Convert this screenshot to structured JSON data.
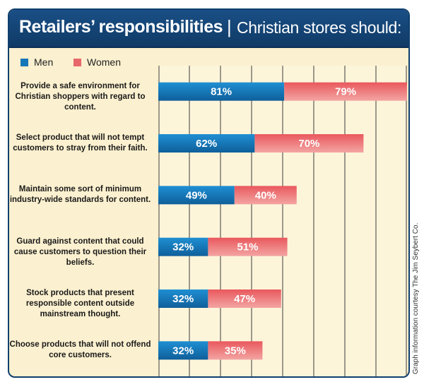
{
  "title": "Retailers’ responsibilities",
  "separator": "|",
  "subtitle": "Christian stores should:",
  "credit": "Graph information courtesy The Jim Seybert Co.",
  "colors": {
    "frame": "#0f3f6e",
    "background": "#fbf0cf",
    "men": "#1677b8",
    "women": "#e8676b",
    "grid": "#3a3a3a"
  },
  "chart_data": {
    "type": "bar",
    "orientation": "horizontal",
    "stacked": true,
    "categories": [
      "Provide a safe environment for Christian shoppers with regard to content.",
      "Select product that will not tempt customers to stray from their faith.",
      "Maintain some sort of minimum industry-wide standards for content.",
      "Guard against content that could cause customers to question their beliefs.",
      "Stock products that present responsible content outside mainstream thought.",
      "Choose products that will not offend core customers."
    ],
    "series": [
      {
        "name": "Men",
        "values": [
          81,
          62,
          49,
          32,
          32,
          32
        ],
        "labels": [
          "81%",
          "62%",
          "49%",
          "32%",
          "32%",
          "32%"
        ]
      },
      {
        "name": "Women",
        "values": [
          79,
          70,
          40,
          51,
          47,
          35
        ],
        "labels": [
          "79%",
          "70%",
          "40%",
          "51%",
          "47%",
          "35%"
        ]
      }
    ],
    "xlim": [
      0,
      160
    ],
    "grid": true,
    "legend": "top-left"
  }
}
